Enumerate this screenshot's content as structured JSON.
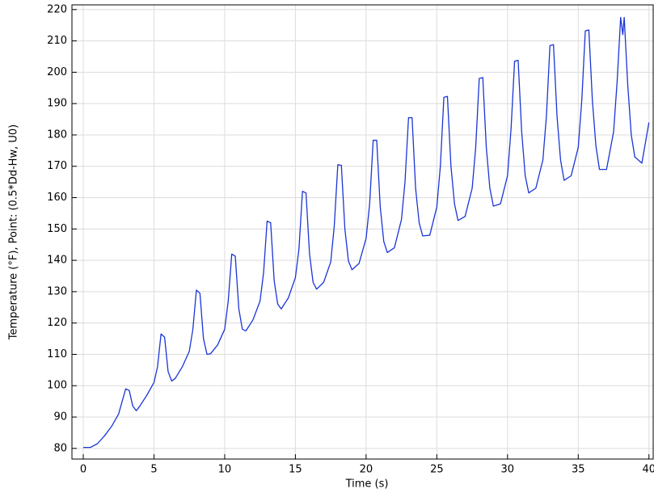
{
  "chart_data": {
    "type": "line",
    "xlabel": "Time (s)",
    "ylabel": "Temperature (°F), Point: (0.5*Dd-Hw, U0)",
    "x": [
      0,
      0.5,
      1,
      1.5,
      2,
      2.5,
      3,
      3.25,
      3.5,
      3.75,
      4,
      4.5,
      5,
      5.25,
      5.5,
      5.75,
      6,
      6.25,
      6.5,
      7,
      7.5,
      7.75,
      8,
      8.25,
      8.5,
      8.75,
      9,
      9.5,
      10,
      10.25,
      10.5,
      10.75,
      11,
      11.25,
      11.5,
      12,
      12.5,
      12.75,
      13,
      13.25,
      13.5,
      13.75,
      14,
      14.5,
      15,
      15.25,
      15.5,
      15.75,
      16,
      16.25,
      16.5,
      17,
      17.5,
      17.75,
      18,
      18.25,
      18.5,
      18.75,
      19,
      19.5,
      20,
      20.25,
      20.5,
      20.75,
      21,
      21.25,
      21.5,
      22,
      22.5,
      22.75,
      23,
      23.25,
      23.5,
      23.75,
      24,
      24.5,
      25,
      25.25,
      25.5,
      25.75,
      26,
      26.25,
      26.5,
      27,
      27.5,
      27.75,
      28,
      28.25,
      28.5,
      28.75,
      29,
      29.5,
      30,
      30.25,
      30.5,
      30.75,
      31,
      31.25,
      31.5,
      32,
      32.5,
      32.75,
      33,
      33.25,
      33.5,
      33.75,
      34,
      34.5,
      35,
      35.25,
      35.5,
      35.75,
      36,
      36.25,
      36.5,
      37,
      37.5,
      37.75,
      38,
      38.15,
      38.25,
      38.5,
      38.75,
      39,
      39.5,
      40
    ],
    "series": [
      {
        "color": "#1a35d6",
        "values": [
          80.3,
          80.3,
          81.5,
          84,
          87,
          91,
          99,
          98.5,
          93.5,
          92,
          93.5,
          97,
          101,
          106,
          116.5,
          115.5,
          104.5,
          101.5,
          102.3,
          106,
          111,
          118,
          130.5,
          129.5,
          115,
          110,
          110.2,
          113,
          118,
          127,
          142,
          141.3,
          124.5,
          118,
          117.5,
          121,
          127,
          136,
          152.5,
          152,
          133.5,
          126,
          124.5,
          128,
          134.5,
          143.5,
          162,
          161.5,
          142,
          133,
          130.8,
          133,
          139.5,
          151,
          170.5,
          170.3,
          150,
          139.8,
          137,
          139,
          147,
          158,
          178.3,
          178.3,
          157,
          146,
          142.5,
          144,
          153,
          165,
          185.5,
          185.5,
          163,
          152,
          147.8,
          148,
          157,
          170,
          192,
          192.3,
          170,
          158,
          152.7,
          154,
          163,
          176,
          198,
          198.3,
          176,
          163,
          157.3,
          158,
          167,
          182,
          203.5,
          203.8,
          181,
          167,
          161.5,
          163,
          172,
          186,
          208.5,
          208.8,
          186,
          172,
          165.5,
          167,
          176,
          191,
          213.2,
          213.5,
          191,
          176.5,
          169,
          169,
          181,
          197,
          217.5,
          212,
          217.5,
          196,
          180,
          173,
          171,
          184
        ]
      }
    ],
    "xlim": [
      -0.8,
      40.3
    ],
    "ylim": [
      76.6,
      221.5
    ],
    "xticks": [
      0,
      5,
      10,
      15,
      20,
      25,
      30,
      35,
      40
    ],
    "yticks": [
      80,
      90,
      100,
      110,
      120,
      130,
      140,
      150,
      160,
      170,
      180,
      190,
      200,
      210,
      220
    ],
    "grid": true
  }
}
